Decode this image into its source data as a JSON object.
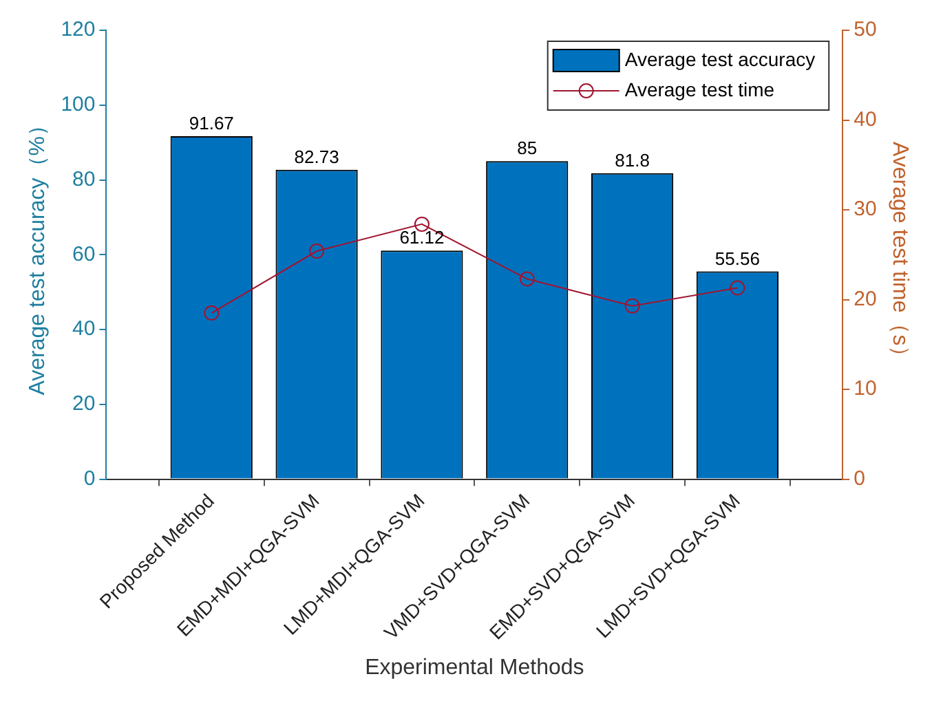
{
  "chart_data": {
    "type": "bar",
    "xlabel": "Experimental Methods",
    "ylabel": "Average test accuracy（%）",
    "y2label": "Average test time（s）",
    "categories": [
      null,
      "Proposed Method",
      "EMD+MDI+QGA-SVM",
      "LMD+MDI+QGA-SVM",
      "VMD+SVD+QGA-SVM",
      "EMD+SVD+QGA-SVM",
      "LMD+SVD+QGA-SVM",
      null
    ],
    "series": [
      {
        "name": "Average test accuracy",
        "color": "#0072bd",
        "values": [
          null,
          91.67,
          82.73,
          61.12,
          85,
          81.8,
          55.56,
          null
        ],
        "data_labels": true
      },
      {
        "name": "Average test time",
        "type": "line",
        "axis": "y2",
        "color": "#a2142f",
        "marker": "circle",
        "values": [
          null,
          18.5,
          25.4,
          28.4,
          22.3,
          19.3,
          21.3,
          null
        ]
      }
    ],
    "ylim": [
      0,
      120
    ],
    "yticks": [
      0,
      20,
      40,
      60,
      80,
      100,
      120
    ],
    "y2lim": [
      0,
      50
    ],
    "y2ticks": [
      0,
      10,
      20,
      30,
      40,
      50
    ],
    "grid": false,
    "legend": "top right"
  }
}
